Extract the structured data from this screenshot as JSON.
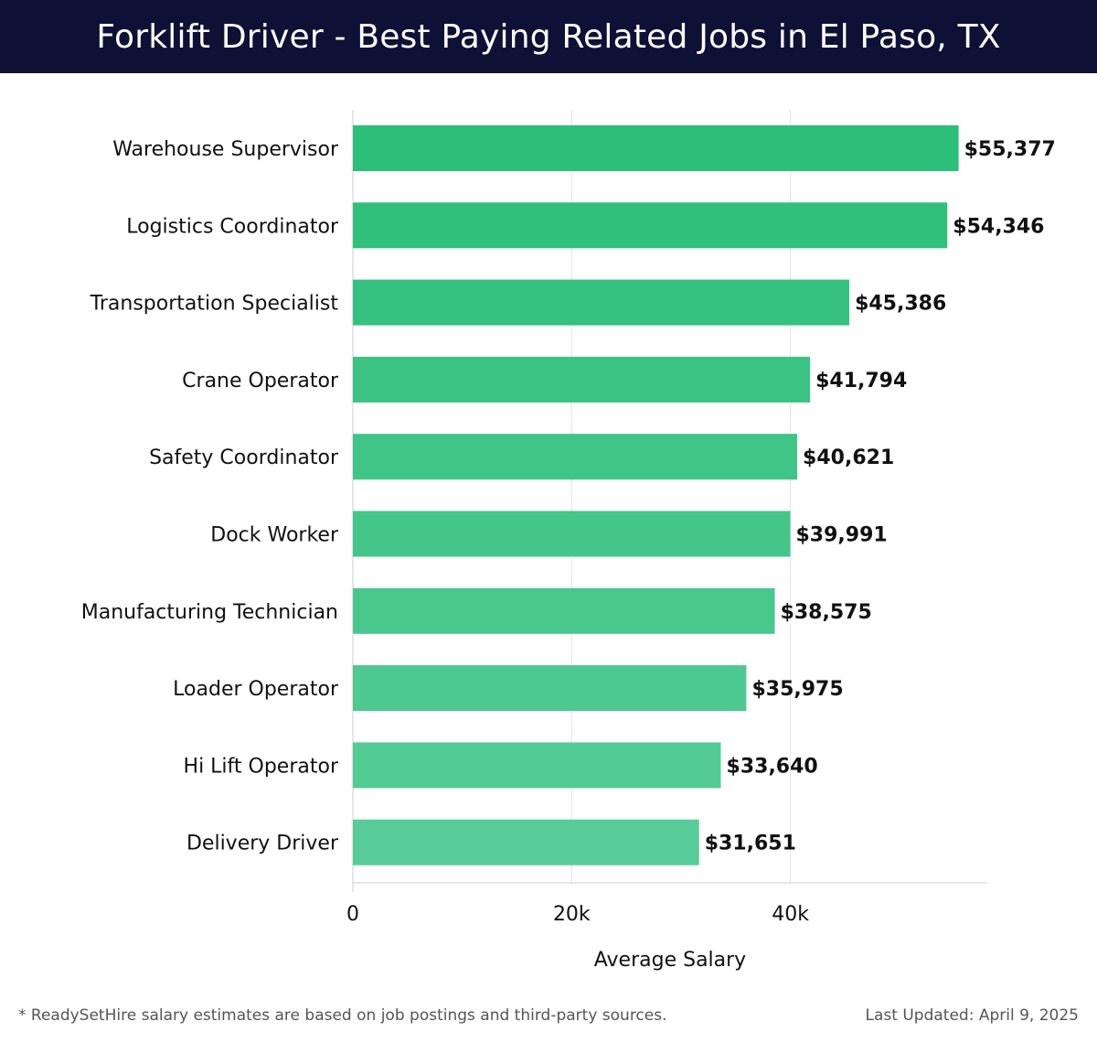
{
  "header": {
    "title": "Forklift Driver - Best Paying Related Jobs in El Paso, TX"
  },
  "colors": {
    "title_bg": "#0e1036",
    "bar_top": "#2bbf79",
    "bar_bottom": "#58cc98",
    "grid": "#e3e3e3",
    "axis": "#cccccc"
  },
  "chart_data": {
    "type": "bar",
    "orientation": "horizontal",
    "title": "Forklift Driver - Best Paying Related Jobs in El Paso, TX",
    "xlabel": "Average Salary",
    "ylabel": "",
    "xlim": [
      0,
      58000
    ],
    "xticks": [
      0,
      20000,
      40000
    ],
    "xtick_labels": [
      "0",
      "20k",
      "40k"
    ],
    "grid": true,
    "categories": [
      "Warehouse Supervisor",
      "Logistics Coordinator",
      "Transportation Specialist",
      "Crane Operator",
      "Safety Coordinator",
      "Dock Worker",
      "Manufacturing Technician",
      "Loader Operator",
      "Hi Lift Operator",
      "Delivery Driver"
    ],
    "values": [
      55377,
      54346,
      45386,
      41794,
      40621,
      39991,
      38575,
      35975,
      33640,
      31651
    ],
    "value_labels": [
      "$55,377",
      "$54,346",
      "$45,386",
      "$41,794",
      "$40,621",
      "$39,991",
      "$38,575",
      "$35,975",
      "$33,640",
      "$31,651"
    ]
  },
  "footer": {
    "note": "* ReadySetHire salary estimates are based on job postings and third-party sources.",
    "updated": "Last Updated: April 9, 2025"
  }
}
